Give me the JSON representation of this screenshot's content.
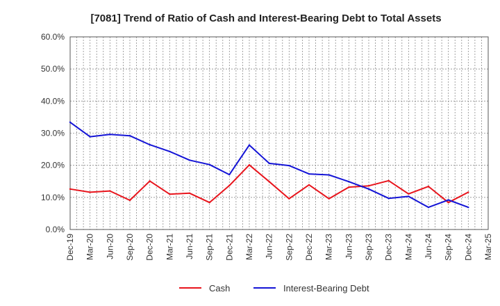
{
  "chart_data": {
    "type": "line",
    "title": "[7081]  Trend of Ratio of Cash and Interest-Bearing Debt to Total Assets",
    "xlabel": "",
    "ylabel": "",
    "ylim": [
      0,
      60
    ],
    "y_ticks": [
      "0.0%",
      "10.0%",
      "20.0%",
      "30.0%",
      "40.0%",
      "50.0%",
      "60.0%"
    ],
    "x_ticks": [
      "Dec-19",
      "Mar-20",
      "Jun-20",
      "Sep-20",
      "Dec-20",
      "Mar-21",
      "Jun-21",
      "Sep-21",
      "Dec-21",
      "Mar-22",
      "Jun-22",
      "Sep-22",
      "Dec-22",
      "Mar-23",
      "Jun-23",
      "Sep-23",
      "Dec-23",
      "Mar-24",
      "Jun-24",
      "Sep-24",
      "Dec-24",
      "Mar-25"
    ],
    "x": [
      "Dec-19",
      "Mar-20",
      "Jun-20",
      "Sep-20",
      "Dec-20",
      "Mar-21",
      "Jun-21",
      "Sep-21",
      "Dec-21",
      "Mar-22",
      "Jun-22",
      "Sep-22",
      "Dec-22",
      "Mar-23",
      "Jun-23",
      "Sep-23",
      "Dec-23",
      "Mar-24",
      "Jun-24",
      "Sep-24",
      "Dec-24"
    ],
    "grid": true,
    "legend_position": "bottom",
    "series": [
      {
        "name": "Cash",
        "color": "#e8141c",
        "values": [
          12.6,
          11.6,
          12.0,
          9.1,
          15.1,
          11.0,
          11.3,
          8.4,
          13.7,
          20.1,
          14.9,
          9.6,
          13.9,
          9.6,
          13.2,
          13.6,
          15.2,
          11.1,
          13.4,
          8.4,
          11.6
        ]
      },
      {
        "name": "Interest-Bearing Debt",
        "color": "#1414d6",
        "values": [
          33.4,
          28.9,
          29.6,
          29.2,
          26.4,
          24.3,
          21.6,
          20.2,
          17.1,
          26.3,
          20.6,
          19.9,
          17.3,
          17.0,
          14.9,
          12.6,
          9.7,
          10.3,
          6.9,
          9.2,
          6.9
        ]
      }
    ]
  }
}
